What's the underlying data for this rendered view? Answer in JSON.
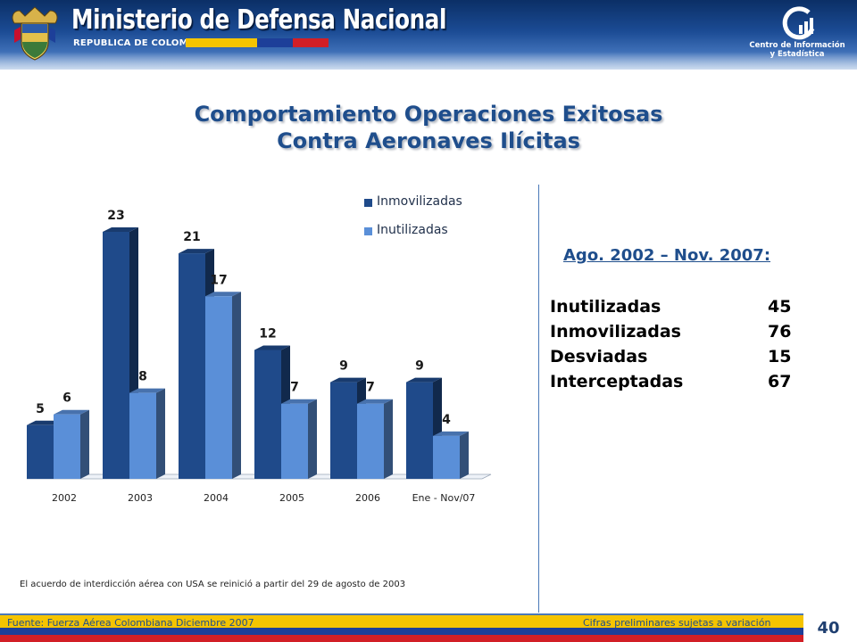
{
  "header": {
    "ministry": "Ministerio de Defensa Nacional",
    "republica": "REPUBLICA DE COLOMBIA",
    "center_line1": "Centro de Información",
    "center_line2": "y Estadística"
  },
  "title": {
    "line1": "Comportamiento Operaciones Exitosas",
    "line2": "Contra Aeronaves Ilícitas"
  },
  "chart_data": {
    "type": "bar",
    "categories": [
      "2002",
      "2003",
      "2004",
      "2005",
      "2006",
      "Ene - Nov/07"
    ],
    "series": [
      {
        "name": "Inmovilizadas",
        "values": [
          5,
          23,
          21,
          12,
          9,
          9
        ],
        "color": "#1f4a8a"
      },
      {
        "name": "Inutilizadas",
        "values": [
          6,
          8,
          17,
          7,
          7,
          4
        ],
        "color": "#5a8fd8"
      }
    ],
    "ylim": [
      0,
      23
    ],
    "legend": "top-right",
    "grid": false
  },
  "summary": {
    "title": "Ago. 2002 – Nov. 2007:",
    "rows": [
      {
        "label": "Inutilizadas",
        "value": "45"
      },
      {
        "label": "Inmovilizadas",
        "value": "76"
      },
      {
        "label": "Desviadas",
        "value": "15"
      },
      {
        "label": "Interceptadas",
        "value": "67"
      }
    ]
  },
  "note": "El acuerdo de interdicción aérea con USA se reinició a partir del 29 de agosto de 2003",
  "footer": {
    "fuente": "Fuente: Fuerza Aérea Colombiana  Diciembre 2007",
    "cifras": "Cifras preliminares sujetas a variación",
    "page": "40"
  },
  "colors": {
    "title": "#1f4e8c",
    "flag_yellow": "#f5c400",
    "flag_blue": "#1d3f99",
    "flag_red": "#d21f26"
  }
}
